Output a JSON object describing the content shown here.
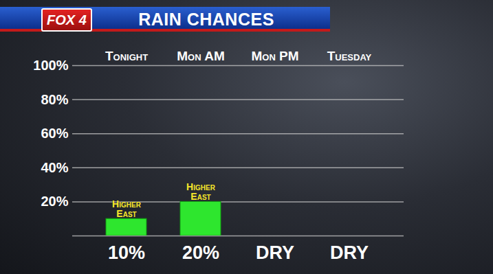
{
  "chart_data": {
    "type": "bar",
    "title": "RAIN CHANCES",
    "logo": "FOX 4",
    "categories": [
      "Tonight",
      "Mon AM",
      "Mon PM",
      "Tuesday"
    ],
    "values": [
      10,
      20,
      0,
      0
    ],
    "value_labels": [
      "10%",
      "20%",
      "DRY",
      "DRY"
    ],
    "data_labels": true,
    "color": "#2ee62e",
    "annotations": [
      {
        "category": "Tonight",
        "text": "Higher\nEast"
      },
      {
        "category": "Mon AM",
        "text": "Higher\nEast"
      }
    ],
    "ylim": [
      0,
      100
    ],
    "yticks": [
      {
        "value": 20,
        "label": "20%"
      },
      {
        "value": 40,
        "label": "40%"
      },
      {
        "value": 60,
        "label": "60%"
      },
      {
        "value": 80,
        "label": "80%"
      },
      {
        "value": 100,
        "label": "100%"
      }
    ],
    "grid": true
  }
}
